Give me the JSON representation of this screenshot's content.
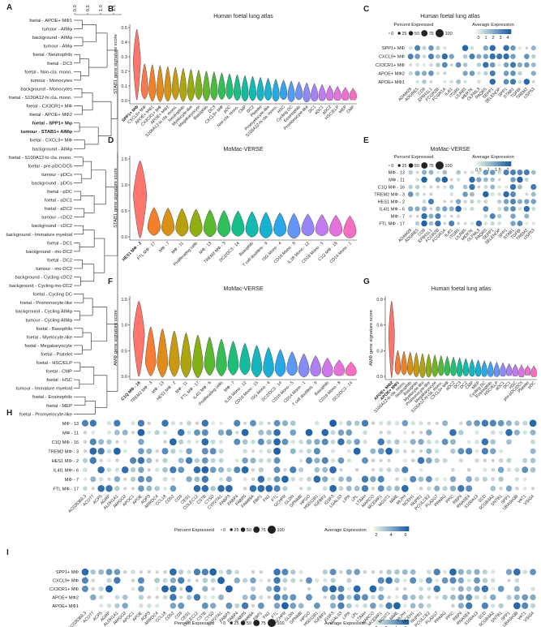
{
  "panel_letters": {
    "A": "A",
    "B": "B",
    "C": "C",
    "D": "D",
    "E": "E",
    "F": "F",
    "G": "G",
    "H": "H",
    "I": "I"
  },
  "colors": {
    "gradient": [
      "#FE756C",
      "#F37F2B",
      "#D99116",
      "#B9A10E",
      "#8FAE12",
      "#5AB92F",
      "#2FBF5C",
      "#16BE89",
      "#12BAB0",
      "#17B2D1",
      "#2AA6E9",
      "#6396F6",
      "#9786F8",
      "#C47AF0",
      "#E571DE",
      "#F66FC2"
    ],
    "dot_low": "#edf7e5",
    "dot_high": "#1d5fa8",
    "dot_grey": "#d0d0d0"
  },
  "panelA": {
    "axis_ticks": [
      "0.0",
      "0.5",
      "1.0",
      "1.5"
    ],
    "bold": [
      "foetal - SPP1+ Mφ",
      "tumour - STAB1+ AIMφ"
    ],
    "labels": [
      "foetal - APOE+ MΦ1",
      "tumour - AIMφ",
      "background - AIMφ",
      "tumour - AMφ",
      "foetal - Neutrophils",
      "foetal - DC3",
      "foetal - Non-cla. mono.",
      "tumour - Monocytes",
      "background - Monocytes",
      "foetal - S100A12-hi cla. mono.",
      "foetal - CX3CR1+ MΦ",
      "foetal - APOE+ MΦ2",
      "foetal - SPP1+ Mφ",
      "tumour - STAB1+ AIMφ",
      "foetal - CXCL9+ MΦ",
      "background - AIMφ",
      "foetal - S100A12-lo cla. mono.",
      "foetal - pre-pDC/DC5",
      "tumour - pDCs",
      "background - pDCs",
      "foetal - pDC",
      "foetal - aDC1",
      "foetal - aDC2",
      "tumour - cDC2",
      "background - cDC2",
      "background - Immature myeloid",
      "foetal - DC1",
      "background - mo-DC2",
      "foetal - DC2",
      "tumour - mo-DC2",
      "background - Cycling cDC2",
      "background - Cycling mo-DC2",
      "foetal - Cycling DC",
      "foetal - Promonocyte-like",
      "background - Cycling AIMφ",
      "tumour - Cycling AIMφ",
      "foetal - Basophils",
      "foetal - Myelocyte-like",
      "foetal - Megakaryocyte",
      "foetal - Platelet",
      "foetal - HSC/ELP",
      "foetal - CMP",
      "foetal - HSC",
      "tumour - Immature myeloid",
      "foetal - Eosinophils",
      "foetal - MEP",
      "foetal - Promyelocyte-like"
    ]
  },
  "panelB": {
    "title": "Human foetal lung atlas",
    "ylabel": "STAB1 gene signature score",
    "yticks": [
      "0.5",
      "0.4",
      "0.3",
      "0.2",
      "0.1",
      "0.0"
    ],
    "bold_count": 1,
    "categories": [
      "SPP1+ MΦ",
      "CXCL9+ MΦ",
      "APOE+ MΦ1",
      "CX3CR1+ MΦ",
      "APOE+ MΦ2",
      "S100A12-lo cla. mono.",
      "Neutrophils",
      "Myelocyte-like",
      "Megakaryocyte",
      "Basophils",
      "DC3",
      "CXCL9+ MΦ",
      "pDC",
      "Non-cla. mono.",
      "CMP",
      "DC2",
      "Platelet",
      "Promyelocyte-like",
      "S100A12-hi cla. mono.",
      "HSC",
      "Cycling DC",
      "Eosinophils",
      "Promonocyte-like",
      "DC1",
      "aDC1",
      "aDC2",
      "HSC/ELP",
      "MEP",
      "CMP"
    ]
  },
  "panelC": {
    "title": "Human foetal lung atlas",
    "legend_pct_title": "Percent Expressed",
    "legend_avg_title": "Average Expression",
    "pct_ticks": [
      "0",
      "25",
      "50",
      "75",
      "100"
    ],
    "avg_ticks": [
      "0",
      "1",
      "2",
      "3",
      "4"
    ],
    "rows": [
      "SPP1+ MΦ",
      "CXCL9+ MΦ",
      "CX3CR1+ MΦ",
      "APOE+ MΦ2",
      "APOE+ MΦ1"
    ],
    "genes": [
      "ADAM28",
      "ADGRE5",
      "CD9",
      "EPB41L1",
      "FCGR2B",
      "FCGR1A",
      "IL4I1",
      "ITGB5",
      "LILRB5",
      "MERTK",
      "OLFML3",
      "PAQR5",
      "SEPP1",
      "SELENOP",
      "SPP1",
      "STAB1",
      "TGFBI",
      "TREM2",
      "USP53"
    ]
  },
  "panelD": {
    "title": "MoMac-VERSE",
    "ylabel": "STAB1 gene signature score",
    "yticks": [
      "1.5",
      "1.0",
      "0.5",
      "0.0"
    ],
    "bold_count": 1,
    "categories": [
      "HES1 MΦ - 2",
      "FTL MΦ - 17",
      "MΦ - 7",
      "MΦ - 11",
      "Proliferating cells",
      "MΦ - 13",
      "TREM2 MΦ - 3",
      "DC2/DC3 - 14",
      "Basophils",
      "T cell doublets - 9",
      "ISG Mono - 4",
      "CD16 Mono - 8",
      "IL1B Mono - 12",
      "CD16 Mono - 5",
      "C1Q MΦ - 16",
      "CD14 Mono - 1"
    ]
  },
  "panelE": {
    "title": "MoMac-VERSE",
    "legend_pct_title": "Percent Expressed",
    "legend_avg_title": "Average Expression",
    "pct_ticks": [
      "0",
      "25",
      "50",
      "75",
      "100"
    ],
    "avg_ticks": [
      "0.5",
      "1",
      "1.5",
      "2"
    ],
    "rows": [
      "MΦ - 13",
      "MΦ - 11",
      "C1Q MΦ - 16",
      "TREM2 MΦ - 3",
      "HES1 MΦ - 2",
      "IL4I1 MΦ - 6",
      "MΦ - 7",
      "FTL MΦ - 17"
    ],
    "genes": [
      "ADAM28",
      "ADGRE5",
      "CD9",
      "EPB41L1",
      "FCGR2B",
      "FCGR1A",
      "IL4I1",
      "ITGB5",
      "LILRB5",
      "MERTK",
      "OLFML3",
      "PAQR5",
      "SEPP1",
      "SELENOP",
      "SPP1",
      "STAB1",
      "TGFBI",
      "TREM2",
      "USP53"
    ]
  },
  "panelF": {
    "title": "MoMac-VERSE",
    "ylabel": "AMΦ gene signature score",
    "yticks": [
      "1.5",
      "1.0",
      "0.5",
      "0.0"
    ],
    "bold_count": 1,
    "categories": [
      "C1Q MΦ - 16",
      "TREM2 MΦ - 3",
      "MΦ - 13",
      "HES1 MΦ - 2",
      "MΦ - 11",
      "FTL MΦ - 17",
      "IL4I1 MΦ - 6",
      "Proliferating cells",
      "MΦ - 7",
      "IL1B Mono - 12",
      "CD16 Mono - 15",
      "ISG Mono - 4",
      "DC2/DC3 - 14",
      "CD16 Mono - 5",
      "CD14 Mono - 1",
      "T cell doublets - 9",
      "Basophils",
      "CD16 Mono - 8",
      "DC2/DC3 - 14"
    ]
  },
  "panelG": {
    "title": "Human foetal lung atlas",
    "ylabel": "AMΦ gene signature score",
    "yticks": [
      "0.9",
      "0.6",
      "0.3",
      "0.0"
    ],
    "bold_count": 2,
    "categories": [
      "APOE+ MΦ2",
      "APOE+ MΦ1",
      "S100A12-lo cla. mono.",
      "Neutrophils",
      "Basophils",
      "Myelocyte-like",
      "Promonocyte-like",
      "Megakaryocyte",
      "S100A12-hi cla. mono.",
      "CXCL9+ MΦ",
      "aDC2",
      "DC3",
      "DC2",
      "CMP",
      "MEP",
      "Cycling DC",
      "Eosinophils",
      "HSC/ELP",
      "aDC1",
      "DC1",
      "HSC",
      "pre-pDC/DC5",
      "Platelet",
      "pDC"
    ]
  },
  "panelH": {
    "legend_pct_title": "Percent Expressed",
    "legend_avg_title": "Average Expression",
    "pct_ticks": [
      "0",
      "25",
      "50",
      "75",
      "100"
    ],
    "avg_ticks": [
      "2",
      "4",
      "6"
    ],
    "rows": [
      "MΦ - 13",
      "MΦ - 11",
      "C1Q MΦ - 16",
      "TREM2 MΦ - 3",
      "HES1 MΦ - 2",
      "IL4I1 MΦ - 6",
      "MΦ - 7",
      "FTL MΦ - 17"
    ],
    "genes": [
      "AC026369.3",
      "ACOT7",
      "ACP5",
      "AGRP",
      "ALDH1A1",
      "AMIGO2",
      "APOC1",
      "APOE",
      "AQP3",
      "ARRDC4",
      "CCL18",
      "CD52",
      "CD9",
      "CES1",
      "COLEC12",
      "CSTB",
      "CTSD",
      "CYP27A1",
      "FABP3",
      "FABP4",
      "FABP5",
      "FAM89A",
      "FBP1",
      "FN1",
      "FTL",
      "GCHFR",
      "GLDN",
      "GPNMB",
      "HPGD",
      "HSD11B1",
      "IGFBP2",
      "IGSF3",
      "LGALS3",
      "LIPA",
      "LPL",
      "LTA4H",
      "MARCO",
      "MCEMP1",
      "MGST1",
      "MME",
      "MLPH",
      "NCEH1",
      "NUPR1",
      "PCOLCE2",
      "PLA2G7",
      "PPARG",
      "PPIC",
      "RBP4",
      "RNASE4",
      "S100A13",
      "SCD",
      "SCGB3A2",
      "SNTB1",
      "SPP1",
      "UBASH3B",
      "VAT1",
      "VSIG4"
    ]
  },
  "panelI": {
    "legend_pct_title": "Percent Expressed",
    "legend_avg_title": "Average Expression",
    "pct_ticks": [
      "0",
      "25",
      "50",
      "75",
      "100"
    ],
    "avg_ticks": [
      "0",
      "2",
      "4",
      "6"
    ],
    "rows": [
      "SPP1+ MΦ",
      "CXCL9+ MΦ",
      "CX3CR1+ MΦ",
      "APOE+ MΦ2",
      "APOE+ MΦ1"
    ],
    "genes": [
      "AC026369.3",
      "ACOT7",
      "ACP5",
      "AGRP",
      "ALDH1A1",
      "AMIGO2",
      "APOC1",
      "APOE",
      "AQP3",
      "ARRDC4",
      "CCL18",
      "CD52",
      "CD9",
      "CES1",
      "COLEC12",
      "CSTB",
      "CTSD",
      "CYP27A1",
      "FABP3",
      "FABP4",
      "FABP5",
      "FAM89A",
      "FBP1",
      "FN1",
      "FTL",
      "GCHFR",
      "GLDN",
      "GPNMB",
      "HPGD",
      "HSD11B1",
      "IGFBP2",
      "IGSF3",
      "LGALS3",
      "LIPA",
      "LPL",
      "LTA4H",
      "MARCO",
      "MCEMP1",
      "MGST1",
      "MME",
      "MLPH",
      "NCEH1",
      "NUPR1",
      "PCOLCE2",
      "PLA2G7",
      "PPARG",
      "PPIC",
      "RBP4",
      "RNASE4",
      "S100A13",
      "SCD",
      "SCGB3A2",
      "SNTB1",
      "SPP1",
      "UBASH3B",
      "VAT1",
      "VSIG4"
    ]
  }
}
